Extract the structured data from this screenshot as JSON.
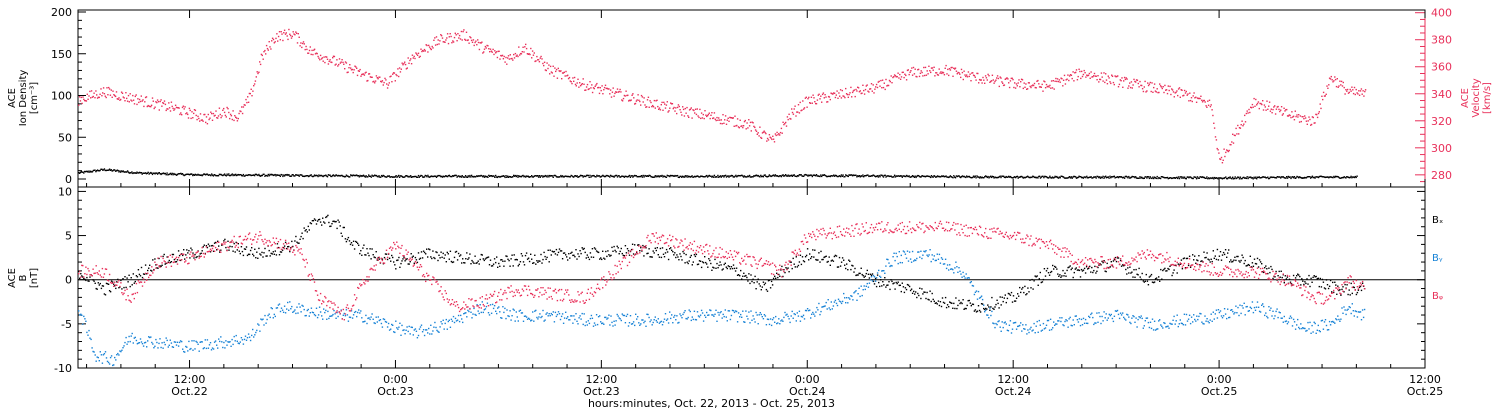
{
  "colors": {
    "axis": "#000000",
    "density": "#000000",
    "velocity": "#e8305a",
    "bx": "#000000",
    "by": "#1883d6",
    "bz": "#e8305a"
  },
  "top_panel": {
    "ylabel_lines": [
      "ACE",
      "Ion Density",
      "[cm⁻³]"
    ],
    "right_ylabel_lines": [
      "ACE",
      "Velocity",
      "[km/s]"
    ]
  },
  "bottom_panel": {
    "ylabel_lines": [
      "ACE",
      "B",
      "[nT]"
    ],
    "legend": [
      "Bₓ",
      "Bᵧ",
      "Bᵩ"
    ]
  },
  "x_axis": {
    "title": "hours:minutes, Oct. 22, 2013 - Oct. 25, 2013",
    "ticks": [
      {
        "time": "12:00",
        "date": "Oct.22"
      },
      {
        "time": "0:00",
        "date": "Oct.23"
      },
      {
        "time": "12:00",
        "date": "Oct.23"
      },
      {
        "time": "0:00",
        "date": "Oct.24"
      },
      {
        "time": "12:00",
        "date": "Oct.24"
      },
      {
        "time": "0:00",
        "date": "Oct.25"
      },
      {
        "time": "12:00",
        "date": "Oct.25"
      }
    ]
  },
  "chart_data": [
    {
      "type": "scatter",
      "panel": "top",
      "xlabel": "hours:minutes, Oct. 22, 2013 - Oct. 25, 2013",
      "x_unit": "hours since 2013-10-22 00:00",
      "xlim": [
        5.5,
        84
      ],
      "ylim": [
        0,
        200
      ],
      "y2lim": [
        271,
        402
      ],
      "yticks": [
        0,
        50,
        100,
        150,
        200
      ],
      "y2ticks": [
        280,
        300,
        320,
        340,
        360,
        380,
        400
      ],
      "grid": false,
      "series": [
        {
          "name": "Ion Density",
          "axis": "left",
          "x": [
            5.5,
            7,
            9,
            12,
            18,
            24,
            30,
            36,
            42,
            48,
            54,
            60,
            66,
            72,
            78,
            80
          ],
          "y": [
            8,
            12,
            8,
            6,
            5,
            4,
            4,
            4,
            4,
            5,
            4,
            3,
            3,
            2,
            3,
            3
          ]
        },
        {
          "name": "Velocity",
          "axis": "right",
          "x": [
            5.5,
            7,
            9,
            11,
            13,
            14,
            14.8,
            15.5,
            16.2,
            17,
            18,
            19,
            20.5,
            22,
            23.5,
            25,
            26.5,
            28,
            29,
            30.5,
            31.5,
            33,
            35,
            37,
            39,
            41,
            43,
            44.5,
            46,
            47,
            48,
            50,
            52,
            54,
            56,
            58,
            60,
            62,
            64,
            66,
            68,
            70,
            71.5,
            72,
            74,
            76,
            77.5,
            78.5,
            79.5,
            80.5
          ],
          "y": [
            336,
            342,
            336,
            330,
            322,
            328,
            323,
            338,
            368,
            383,
            385,
            372,
            364,
            355,
            348,
            368,
            380,
            384,
            375,
            366,
            375,
            358,
            347,
            340,
            333,
            327,
            322,
            318,
            305,
            325,
            335,
            340,
            345,
            356,
            358,
            352,
            348,
            346,
            356,
            350,
            345,
            340,
            332,
            290,
            335,
            325,
            320,
            353,
            342,
            340
          ]
        }
      ]
    },
    {
      "type": "scatter",
      "panel": "bottom",
      "ylabel": "B [nT]",
      "x_unit": "hours since 2013-10-22 00:00",
      "xlim": [
        5.5,
        84
      ],
      "ylim": [
        -10,
        10.5
      ],
      "yticks": [
        -10,
        -5,
        0,
        5,
        10
      ],
      "grid": false,
      "series": [
        {
          "name": "Bₓ",
          "x": [
            5.5,
            7,
            8.5,
            10,
            12,
            14,
            16,
            18,
            19.5,
            20.5,
            21.5,
            22.5,
            24,
            26,
            28,
            30,
            32,
            34,
            36,
            38,
            40,
            42,
            44,
            45.5,
            46.5,
            48,
            50,
            52,
            54,
            56,
            58,
            60,
            62,
            64,
            66,
            68,
            70,
            72,
            74,
            76,
            77.5,
            79,
            80.5
          ],
          "y": [
            1,
            -1,
            0,
            2,
            3,
            4,
            3,
            4,
            7,
            6.5,
            4,
            3,
            2,
            3,
            2.5,
            2,
            2.5,
            3,
            3,
            3.5,
            3,
            2,
            1,
            -1,
            1,
            3,
            2,
            0,
            -1,
            -2.5,
            -3,
            -2,
            1,
            1,
            2,
            0,
            2,
            3,
            2,
            0,
            0,
            -1,
            -1
          ]
        },
        {
          "name": "Bᵧ",
          "x": [
            5.5,
            6.5,
            7.5,
            8.5,
            10,
            12,
            14,
            15.5,
            16.5,
            17.5,
            19,
            20.5,
            22,
            23.5,
            25,
            27,
            29,
            31,
            33,
            35,
            37,
            39,
            41,
            43,
            44,
            46,
            47.5,
            49,
            51,
            53,
            55,
            57,
            59,
            60.5,
            62,
            64,
            66,
            68,
            70,
            72,
            74,
            75.5,
            77,
            78.5,
            79.5,
            80.5
          ],
          "y": [
            -3,
            -8.5,
            -9,
            -6.5,
            -7,
            -7.5,
            -7,
            -6.5,
            -4,
            -3,
            -3.5,
            -4,
            -4,
            -5,
            -6,
            -5,
            -3,
            -4,
            -4,
            -4.5,
            -4.5,
            -4.5,
            -4,
            -4,
            -4,
            -4.5,
            -4,
            -3,
            -1.5,
            2.5,
            3,
            1,
            -5,
            -5.5,
            -5,
            -4.5,
            -4,
            -5,
            -4.5,
            -4,
            -3,
            -4,
            -5.5,
            -5,
            -3,
            -4
          ]
        },
        {
          "name": "Bᵩ",
          "x": [
            5.5,
            7,
            8.5,
            10,
            12,
            14,
            16,
            17.5,
            18.5,
            19.5,
            21,
            22.5,
            24,
            26,
            27.5,
            29,
            31,
            33,
            35,
            37,
            39,
            41,
            43,
            45,
            46.5,
            48,
            50,
            52,
            54,
            56,
            58,
            60,
            62,
            64,
            66,
            68,
            70,
            72,
            74,
            76,
            77.5,
            78.5,
            79.5,
            80.5
          ],
          "y": [
            1,
            1,
            -2,
            2,
            2.5,
            4,
            5,
            4,
            3,
            -2,
            -4,
            1,
            4,
            0,
            -3,
            -2.5,
            -1,
            -1.5,
            -2,
            1.5,
            5,
            4,
            3,
            2,
            1,
            5,
            5.5,
            6,
            6,
            6,
            5.5,
            5,
            4,
            2,
            2,
            3,
            2,
            1,
            1,
            0,
            -2,
            -2,
            0,
            -1
          ]
        }
      ]
    }
  ]
}
